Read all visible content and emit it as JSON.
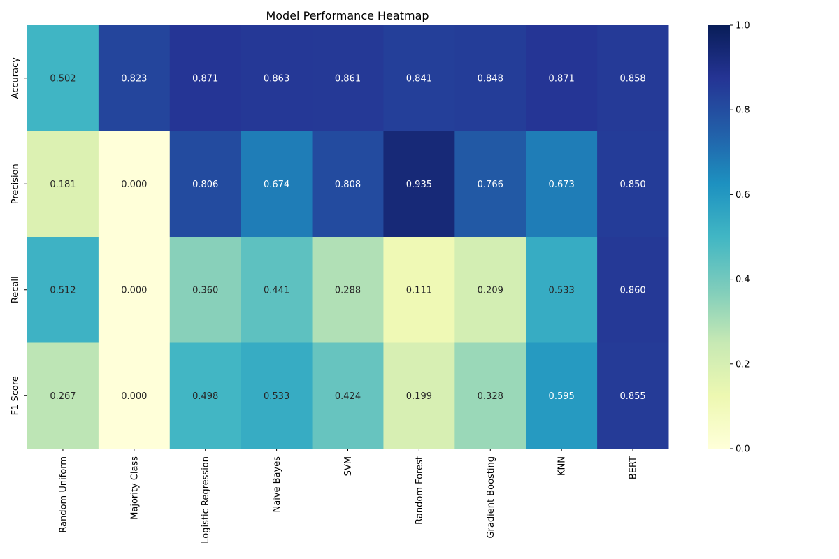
{
  "chart_data": {
    "type": "heatmap",
    "title": "Model Performance Heatmap",
    "x_categories": [
      "Random Uniform",
      "Majority Class",
      "Logistic Regression",
      "Naive Bayes",
      "SVM",
      "Random Forest",
      "Gradient Boosting",
      "KNN",
      "BERT"
    ],
    "y_categories": [
      "Accuracy",
      "Precision",
      "Recall",
      "F1 Score"
    ],
    "values": [
      [
        0.502,
        0.823,
        0.871,
        0.863,
        0.861,
        0.841,
        0.848,
        0.871,
        0.858
      ],
      [
        0.181,
        0.0,
        0.806,
        0.674,
        0.808,
        0.935,
        0.766,
        0.673,
        0.85
      ],
      [
        0.512,
        0.0,
        0.36,
        0.441,
        0.288,
        0.111,
        0.209,
        0.533,
        0.86
      ],
      [
        0.267,
        0.0,
        0.498,
        0.533,
        0.424,
        0.199,
        0.328,
        0.595,
        0.855
      ]
    ],
    "value_format": "0.000",
    "colormap": "YlGnBu",
    "colorbar": {
      "range": [
        0,
        1
      ],
      "ticks": [
        "0.0",
        "0.2",
        "0.4",
        "0.6",
        "0.8",
        "1.0"
      ]
    },
    "xlabel": "",
    "ylabel": ""
  }
}
